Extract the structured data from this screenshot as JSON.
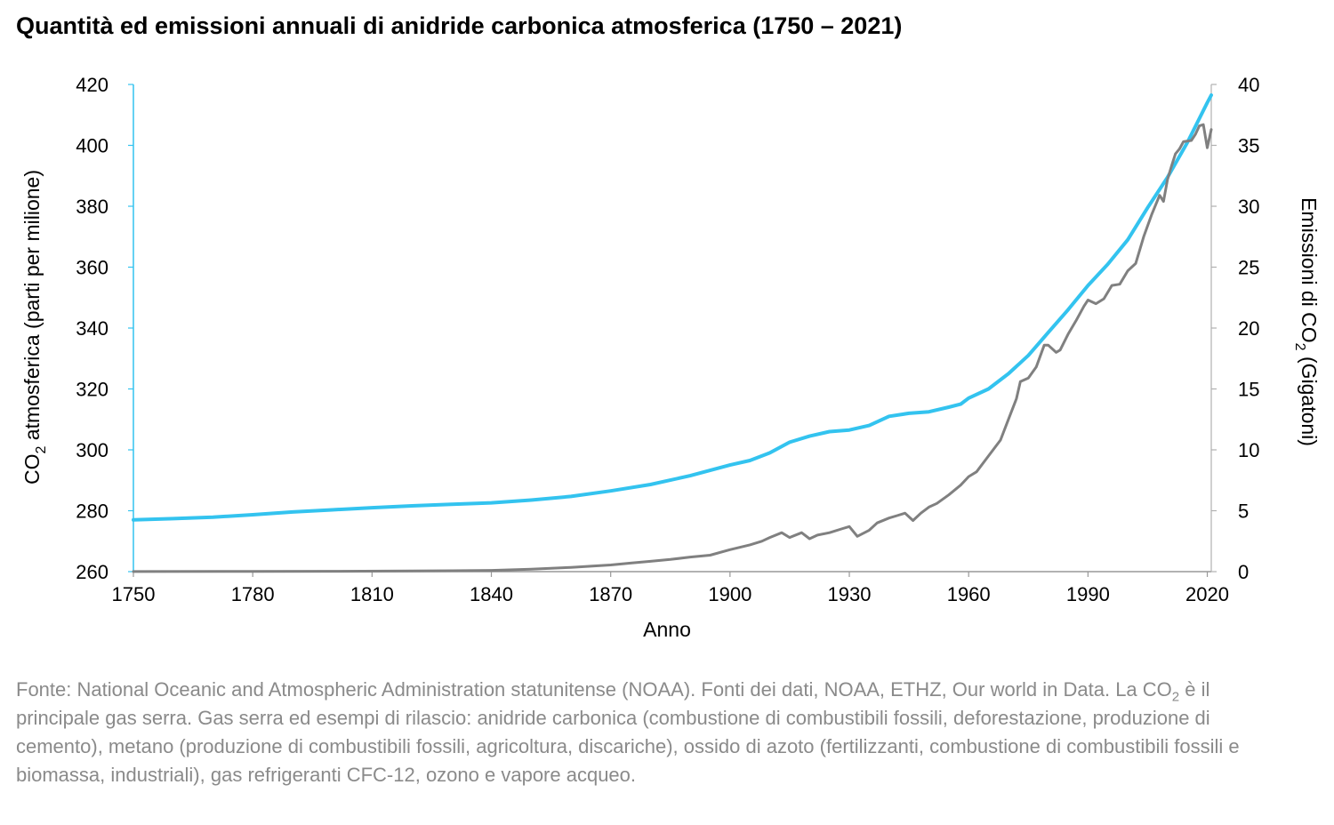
{
  "chart_data": {
    "type": "line",
    "title": "Quantità ed emissioni annuali di anidride carbonica atmosferica (1750 – 2021)",
    "xlabel": "Anno",
    "ylabel_left": {
      "pre": "CO",
      "sub": "2",
      "post": " atmosferica (parti per milione)"
    },
    "ylabel_right": {
      "pre": "Emissioni di CO",
      "sub": "2",
      "post": " (Gigatoni)"
    },
    "xlim": [
      1750,
      2021
    ],
    "xticks": [
      "1750",
      "1780",
      "1810",
      "1840",
      "1870",
      "1900",
      "1930",
      "1960",
      "1990",
      "2020"
    ],
    "ylim_left": [
      260,
      420
    ],
    "yticks_left": [
      "260",
      "280",
      "300",
      "320",
      "340",
      "360",
      "380",
      "400",
      "420"
    ],
    "ylim_right": [
      0,
      40
    ],
    "yticks_right": [
      "0",
      "5",
      "10",
      "15",
      "20",
      "25",
      "30",
      "35",
      "40"
    ],
    "grid": false,
    "series": [
      {
        "axis": "left",
        "color": "#33c3ef",
        "points": [
          [
            1750,
            277
          ],
          [
            1760,
            277.4
          ],
          [
            1770,
            277.9
          ],
          [
            1780,
            278.7
          ],
          [
            1790,
            279.6
          ],
          [
            1800,
            280.3
          ],
          [
            1810,
            281
          ],
          [
            1820,
            281.6
          ],
          [
            1830,
            282.1
          ],
          [
            1840,
            282.6
          ],
          [
            1850,
            283.5
          ],
          [
            1860,
            284.7
          ],
          [
            1870,
            286.5
          ],
          [
            1880,
            288.6
          ],
          [
            1890,
            291.5
          ],
          [
            1900,
            295
          ],
          [
            1905,
            296.5
          ],
          [
            1910,
            299
          ],
          [
            1915,
            302.5
          ],
          [
            1920,
            304.5
          ],
          [
            1925,
            306
          ],
          [
            1930,
            306.5
          ],
          [
            1935,
            308
          ],
          [
            1940,
            311
          ],
          [
            1945,
            312
          ],
          [
            1950,
            312.5
          ],
          [
            1955,
            314
          ],
          [
            1958,
            315
          ],
          [
            1960,
            317
          ],
          [
            1965,
            320
          ],
          [
            1970,
            325
          ],
          [
            1975,
            331
          ],
          [
            1980,
            338.5
          ],
          [
            1985,
            346
          ],
          [
            1990,
            354
          ],
          [
            1995,
            361
          ],
          [
            2000,
            369
          ],
          [
            2005,
            379.5
          ],
          [
            2010,
            389.5
          ],
          [
            2015,
            401
          ],
          [
            2020,
            414
          ],
          [
            2021,
            416.5
          ]
        ]
      },
      {
        "axis": "right",
        "color": "#808080",
        "points": [
          [
            1750,
            0.01
          ],
          [
            1780,
            0.02
          ],
          [
            1800,
            0.03
          ],
          [
            1820,
            0.05
          ],
          [
            1840,
            0.1
          ],
          [
            1850,
            0.2
          ],
          [
            1860,
            0.35
          ],
          [
            1870,
            0.55
          ],
          [
            1875,
            0.7
          ],
          [
            1880,
            0.85
          ],
          [
            1885,
            1.0
          ],
          [
            1890,
            1.2
          ],
          [
            1895,
            1.35
          ],
          [
            1900,
            1.8
          ],
          [
            1905,
            2.2
          ],
          [
            1908,
            2.5
          ],
          [
            1910,
            2.8
          ],
          [
            1913,
            3.2
          ],
          [
            1915,
            2.8
          ],
          [
            1918,
            3.2
          ],
          [
            1920,
            2.7
          ],
          [
            1922,
            3.0
          ],
          [
            1925,
            3.2
          ],
          [
            1928,
            3.5
          ],
          [
            1930,
            3.7
          ],
          [
            1932,
            2.9
          ],
          [
            1935,
            3.4
          ],
          [
            1937,
            4.0
          ],
          [
            1940,
            4.4
          ],
          [
            1942,
            4.6
          ],
          [
            1944,
            4.8
          ],
          [
            1946,
            4.2
          ],
          [
            1948,
            4.8
          ],
          [
            1950,
            5.3
          ],
          [
            1952,
            5.6
          ],
          [
            1955,
            6.3
          ],
          [
            1958,
            7.1
          ],
          [
            1960,
            7.8
          ],
          [
            1962,
            8.2
          ],
          [
            1965,
            9.5
          ],
          [
            1968,
            10.8
          ],
          [
            1970,
            12.5
          ],
          [
            1972,
            14.2
          ],
          [
            1973,
            15.6
          ],
          [
            1975,
            15.9
          ],
          [
            1977,
            16.8
          ],
          [
            1979,
            18.6
          ],
          [
            1980,
            18.6
          ],
          [
            1982,
            18.0
          ],
          [
            1983,
            18.2
          ],
          [
            1985,
            19.5
          ],
          [
            1987,
            20.6
          ],
          [
            1989,
            21.8
          ],
          [
            1990,
            22.3
          ],
          [
            1992,
            22.0
          ],
          [
            1994,
            22.4
          ],
          [
            1996,
            23.5
          ],
          [
            1998,
            23.6
          ],
          [
            2000,
            24.7
          ],
          [
            2002,
            25.3
          ],
          [
            2004,
            27.5
          ],
          [
            2006,
            29.3
          ],
          [
            2008,
            30.9
          ],
          [
            2009,
            30.4
          ],
          [
            2010,
            32.2
          ],
          [
            2011,
            33.3
          ],
          [
            2012,
            34.3
          ],
          [
            2013,
            34.7
          ],
          [
            2014,
            35.3
          ],
          [
            2016,
            35.4
          ],
          [
            2017,
            35.9
          ],
          [
            2018,
            36.6
          ],
          [
            2019,
            36.7
          ],
          [
            2020,
            34.8
          ],
          [
            2021,
            36.3
          ]
        ]
      }
    ]
  },
  "footnote": {
    "before": "Fonte: National Oceanic and Atmospheric Administration statunitense (NOAA). Fonti dei dati, NOAA, ETHZ, Our world in Data. La CO",
    "sub": "2",
    "after": " è il principale gas serra. Gas serra ed esempi di rilascio: anidride carbonica (combustione di combustibili fossili, deforestazione, produzione di cemento), metano (produzione di combustibili fossili, agricoltura, discariche), ossido di azoto (fertilizzanti, combustione di combustibili fossili e biomassa, industriali), gas refrigeranti CFC-12, ozono e vapore acqueo."
  }
}
